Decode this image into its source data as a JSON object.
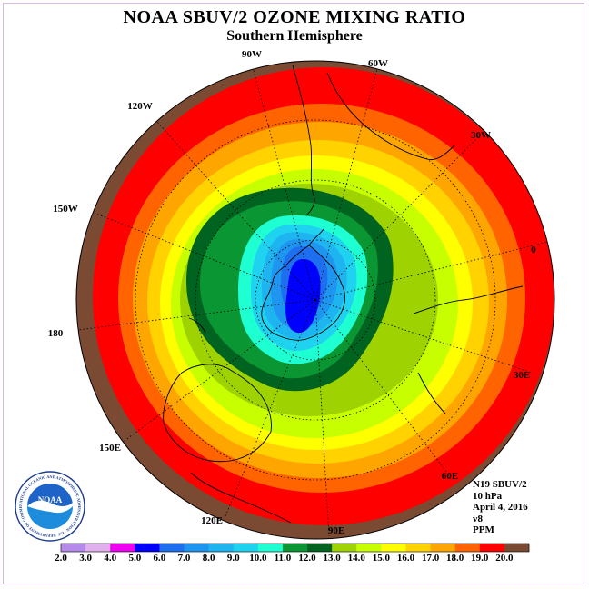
{
  "title": "NOAA SBUV/2 OZONE MIXING RATIO",
  "subtitle": "Southern Hemisphere",
  "longitude_labels": [
    {
      "text": "90W"
    },
    {
      "text": "60W"
    },
    {
      "text": "120W"
    },
    {
      "text": "30W"
    },
    {
      "text": "150W"
    },
    {
      "text": "0"
    },
    {
      "text": "180"
    },
    {
      "text": "30E"
    },
    {
      "text": "150E"
    },
    {
      "text": "60E"
    },
    {
      "text": "120E"
    },
    {
      "text": "90E"
    }
  ],
  "info": {
    "satellite": "N19 SBUV/2",
    "level": "10 hPa",
    "date": "April 4, 2016",
    "version": "v8",
    "units": "PPM"
  },
  "logo": {
    "text": "NOAA",
    "ring_text": "NATIONAL OCEANIC AND ATMOSPHERIC ADMINISTRATION · U.S. DEPARTMENT OF COMMERCE"
  },
  "colorbar": {
    "labels": [
      "2.0",
      "3.0",
      "4.0",
      "5.0",
      "6.0",
      "7.0",
      "8.0",
      "9.0",
      "10.0",
      "11.0",
      "12.0",
      "13.0",
      "14.0",
      "15.0",
      "16.0",
      "17.0",
      "18.0",
      "19.0",
      "20.0"
    ],
    "colors": [
      "#b58aea",
      "#e0b0ee",
      "#f000f0",
      "#0000ff",
      "#1e6ef0",
      "#1e96f0",
      "#1eb4f0",
      "#1ed2f0",
      "#1effd2",
      "#0a9632",
      "#006420",
      "#9ed200",
      "#c8ff00",
      "#ffff00",
      "#ffd200",
      "#ffa500",
      "#ff6400",
      "#ff0000",
      "#7a4a32"
    ]
  },
  "colors": {
    "ocean_brown": "#7a4a32",
    "coast": "#000000"
  }
}
